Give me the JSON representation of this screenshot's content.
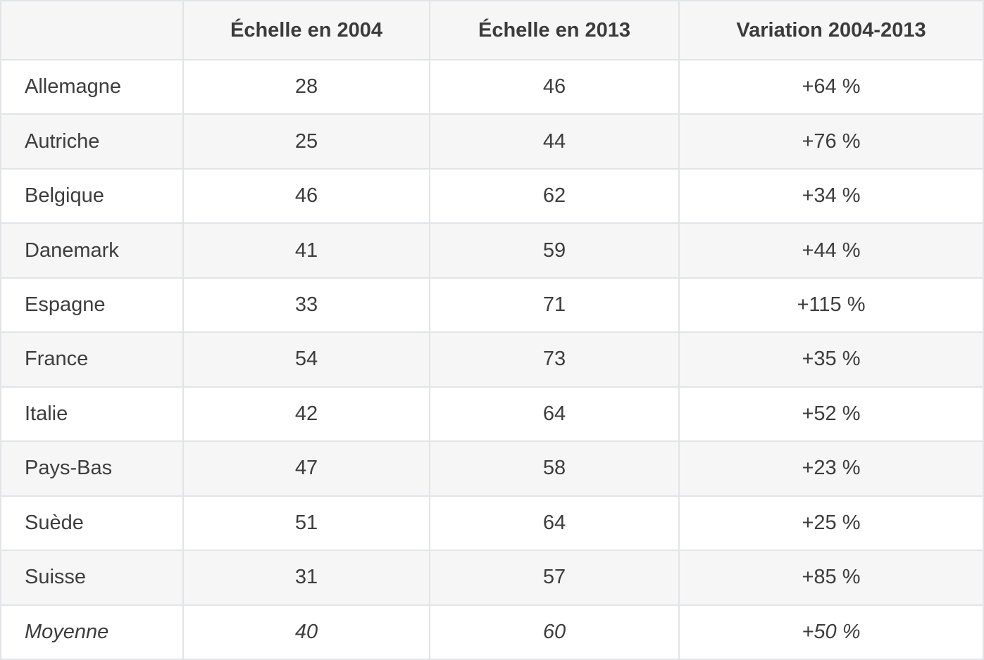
{
  "chart_data": {
    "type": "table",
    "title": "",
    "columns": [
      "",
      "Échelle en 2004",
      "Échelle en 2013",
      "Variation 2004-2013"
    ],
    "rows": [
      {
        "country": "Allemagne",
        "echelle_2004": "28",
        "echelle_2013": "46",
        "variation": "+64 %"
      },
      {
        "country": "Autriche",
        "echelle_2004": "25",
        "echelle_2013": "44",
        "variation": "+76 %"
      },
      {
        "country": "Belgique",
        "echelle_2004": "46",
        "echelle_2013": "62",
        "variation": "+34 %"
      },
      {
        "country": "Danemark",
        "echelle_2004": "41",
        "echelle_2013": "59",
        "variation": "+44 %"
      },
      {
        "country": "Espagne",
        "echelle_2004": "33",
        "echelle_2013": "71",
        "variation": "+115 %"
      },
      {
        "country": "France",
        "echelle_2004": "54",
        "echelle_2013": "73",
        "variation": "+35 %"
      },
      {
        "country": "Italie",
        "echelle_2004": "42",
        "echelle_2013": "64",
        "variation": "+52 %"
      },
      {
        "country": "Pays-Bas",
        "echelle_2004": "47",
        "echelle_2013": "58",
        "variation": "+23 %"
      },
      {
        "country": "Suède",
        "echelle_2004": "51",
        "echelle_2013": "64",
        "variation": "+25 %"
      },
      {
        "country": "Suisse",
        "echelle_2004": "31",
        "echelle_2013": "57",
        "variation": "+85 %"
      },
      {
        "country": "Moyenne",
        "echelle_2004": "40",
        "echelle_2013": "60",
        "variation": "+50 %",
        "italic": true
      }
    ],
    "layout_hints": {
      "striped_rows": true,
      "header_background": true,
      "summary_row": "Moyenne"
    }
  },
  "colors": {
    "stripe_bg": "#f6f6f7",
    "row_bg": "#ffffff",
    "border": "#e2e4e8",
    "text": "#3d3d3d"
  }
}
